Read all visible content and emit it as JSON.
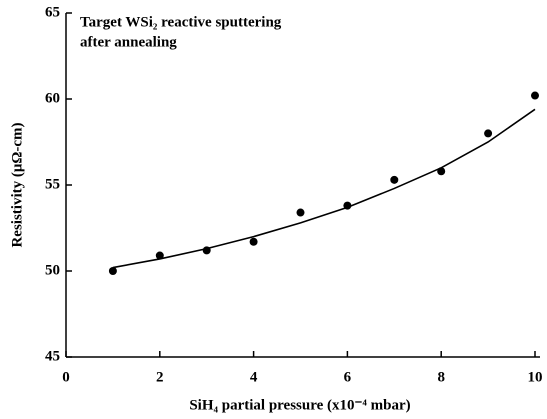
{
  "chart_data": {
    "type": "scatter",
    "annotations": [
      "Target WSi₂ reactive sputtering",
      "after annealing"
    ],
    "x_label": "SiH₄ partial pressure (x10⁻⁴ mbar)",
    "y_label": "Resistivity (μΩ-cm)",
    "x": [
      1,
      2,
      3,
      4,
      5,
      6,
      7,
      8,
      9,
      10
    ],
    "series": [
      {
        "color": "#000000",
        "marker": "circle",
        "values": [
          50.0,
          50.9,
          51.2,
          51.7,
          53.4,
          53.8,
          55.3,
          55.8,
          58.0,
          60.2
        ]
      },
      {
        "color": "#000000",
        "marker": "line",
        "values": [
          50.2,
          50.7,
          51.3,
          52.0,
          52.8,
          53.7,
          54.8,
          56.0,
          57.5,
          59.4
        ]
      }
    ],
    "xlim": [
      0,
      10
    ],
    "xticks": [
      0,
      2,
      4,
      6,
      8,
      10
    ],
    "ylim": [
      45,
      65
    ],
    "yticks": [
      45,
      50,
      55,
      60,
      65
    ]
  }
}
